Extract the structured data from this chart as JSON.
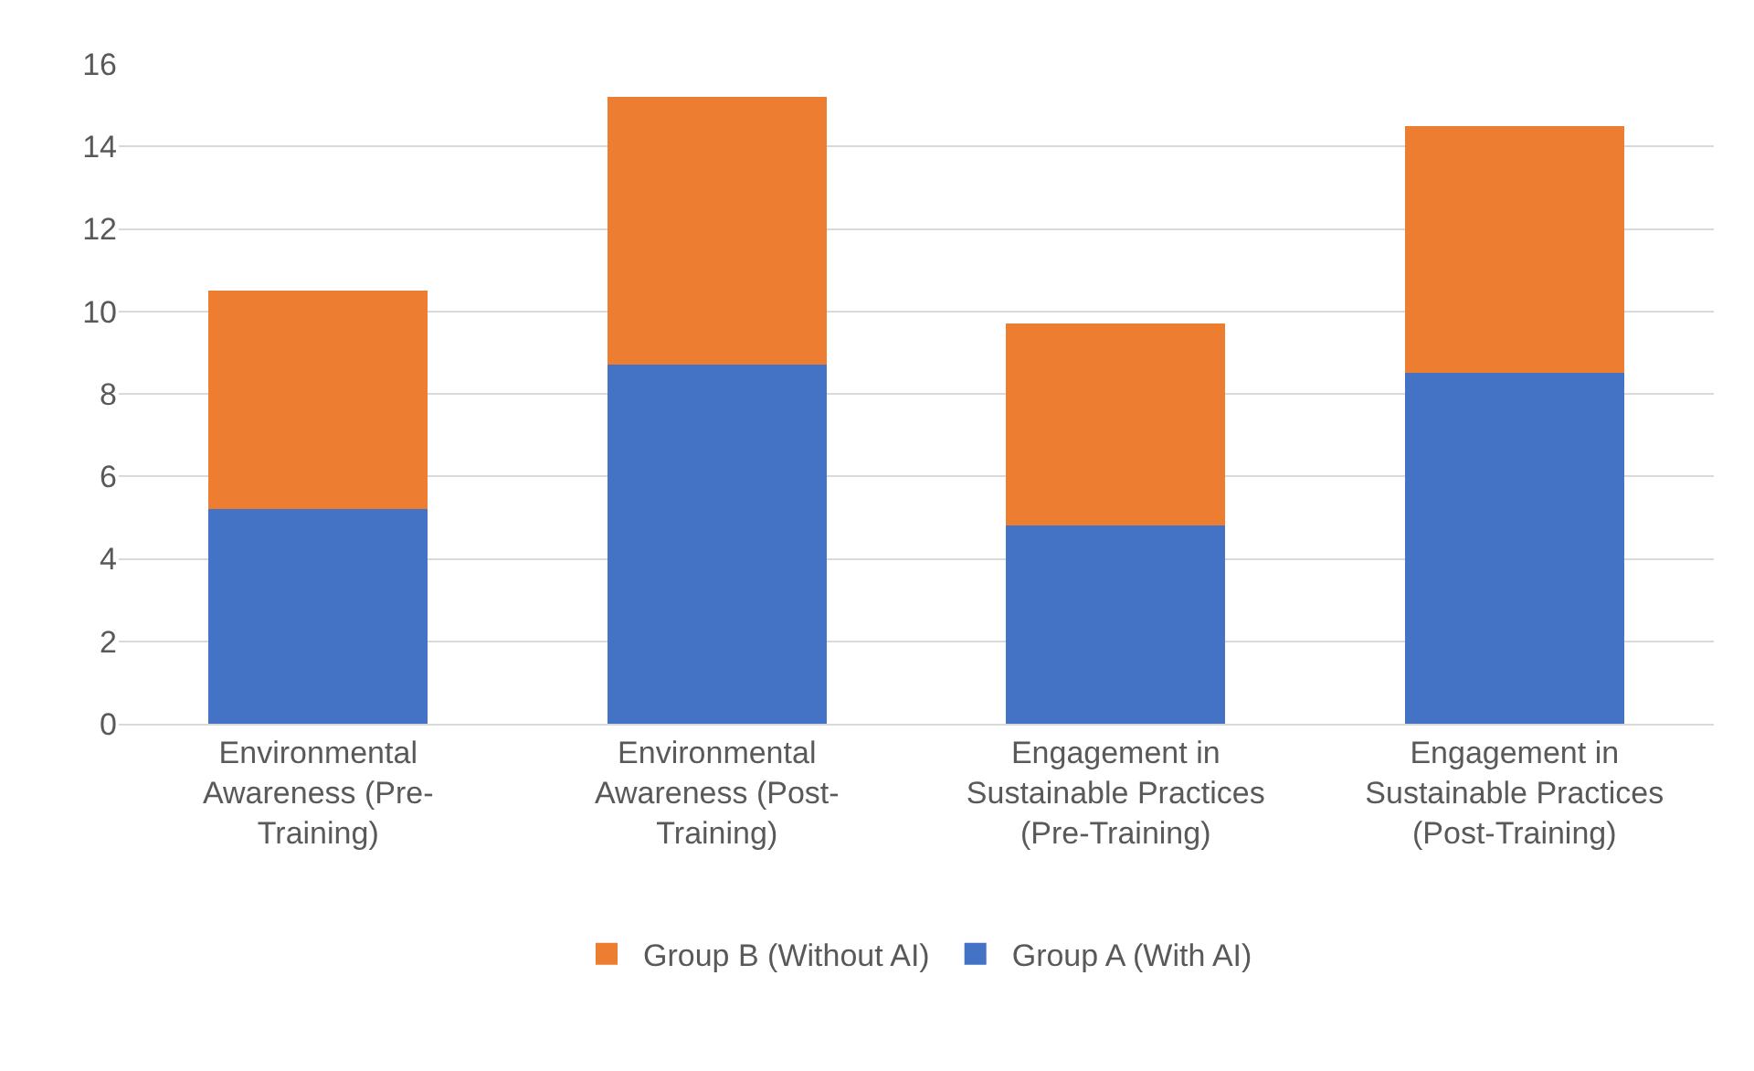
{
  "chart_data": {
    "type": "bar",
    "stacked": true,
    "categories": [
      "Environmental Awareness (Pre-Training)",
      "Environmental Awareness (Post-Training)",
      "Engagement in Sustainable Practices (Pre-Training)",
      "Engagement in Sustainable Practices (Post-Training)"
    ],
    "series": [
      {
        "name": "Group A (With AI)",
        "color": "#4472c4",
        "values": [
          5.2,
          8.7,
          4.8,
          8.5
        ]
      },
      {
        "name": "Group B (Without AI)",
        "color": "#ed7d31",
        "values": [
          5.3,
          6.5,
          4.9,
          6.0
        ]
      }
    ],
    "ylim": [
      0,
      16
    ],
    "yticks": [
      0,
      2,
      4,
      6,
      8,
      10,
      12,
      14,
      16
    ],
    "grid": "y",
    "legend": "bottom"
  }
}
